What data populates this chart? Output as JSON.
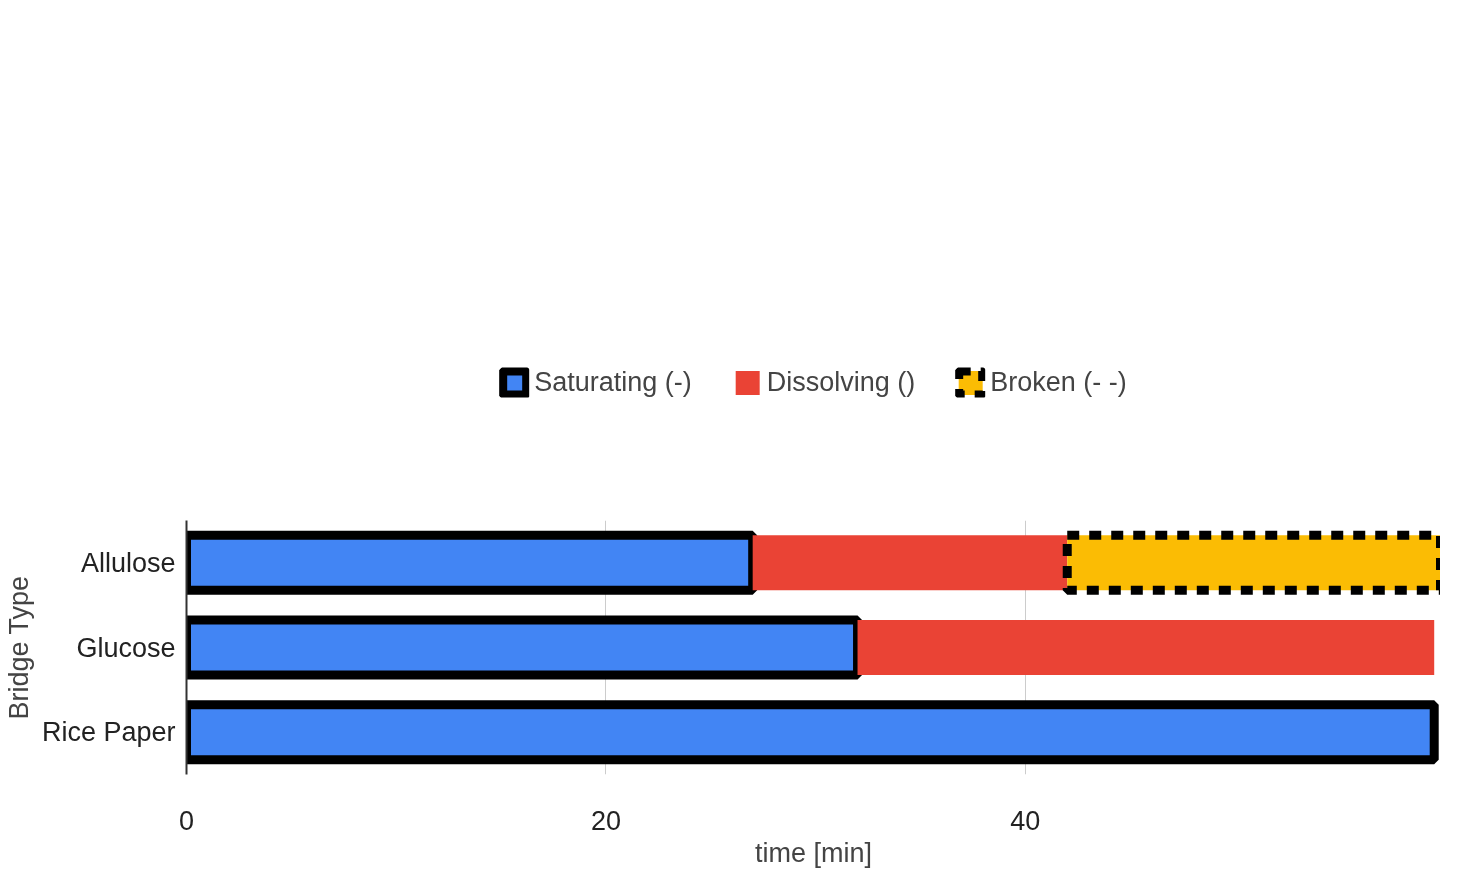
{
  "chart_data": {
    "type": "bar",
    "orientation": "horizontal",
    "stacked": true,
    "xlabel": "time [min]",
    "ylabel": "Bridge Type",
    "categories": [
      "Allulose",
      "Glucose",
      "Rice Paper"
    ],
    "series": [
      {
        "name": "Saturating (-)",
        "color": "#4285f4",
        "line_style": "solid",
        "values": [
          27,
          32,
          59.5
        ]
      },
      {
        "name": "Dissolving ()",
        "color": "#ea4335",
        "values": [
          15,
          27.5,
          null
        ]
      },
      {
        "name": "Broken (- -)",
        "color": "#fbbc04",
        "line_style": "dashed",
        "values": [
          17.8,
          null,
          null
        ]
      }
    ],
    "xlim": [
      0,
      59.8
    ],
    "xticks": [
      0,
      20,
      40
    ],
    "grid": "x",
    "legend": "top"
  }
}
